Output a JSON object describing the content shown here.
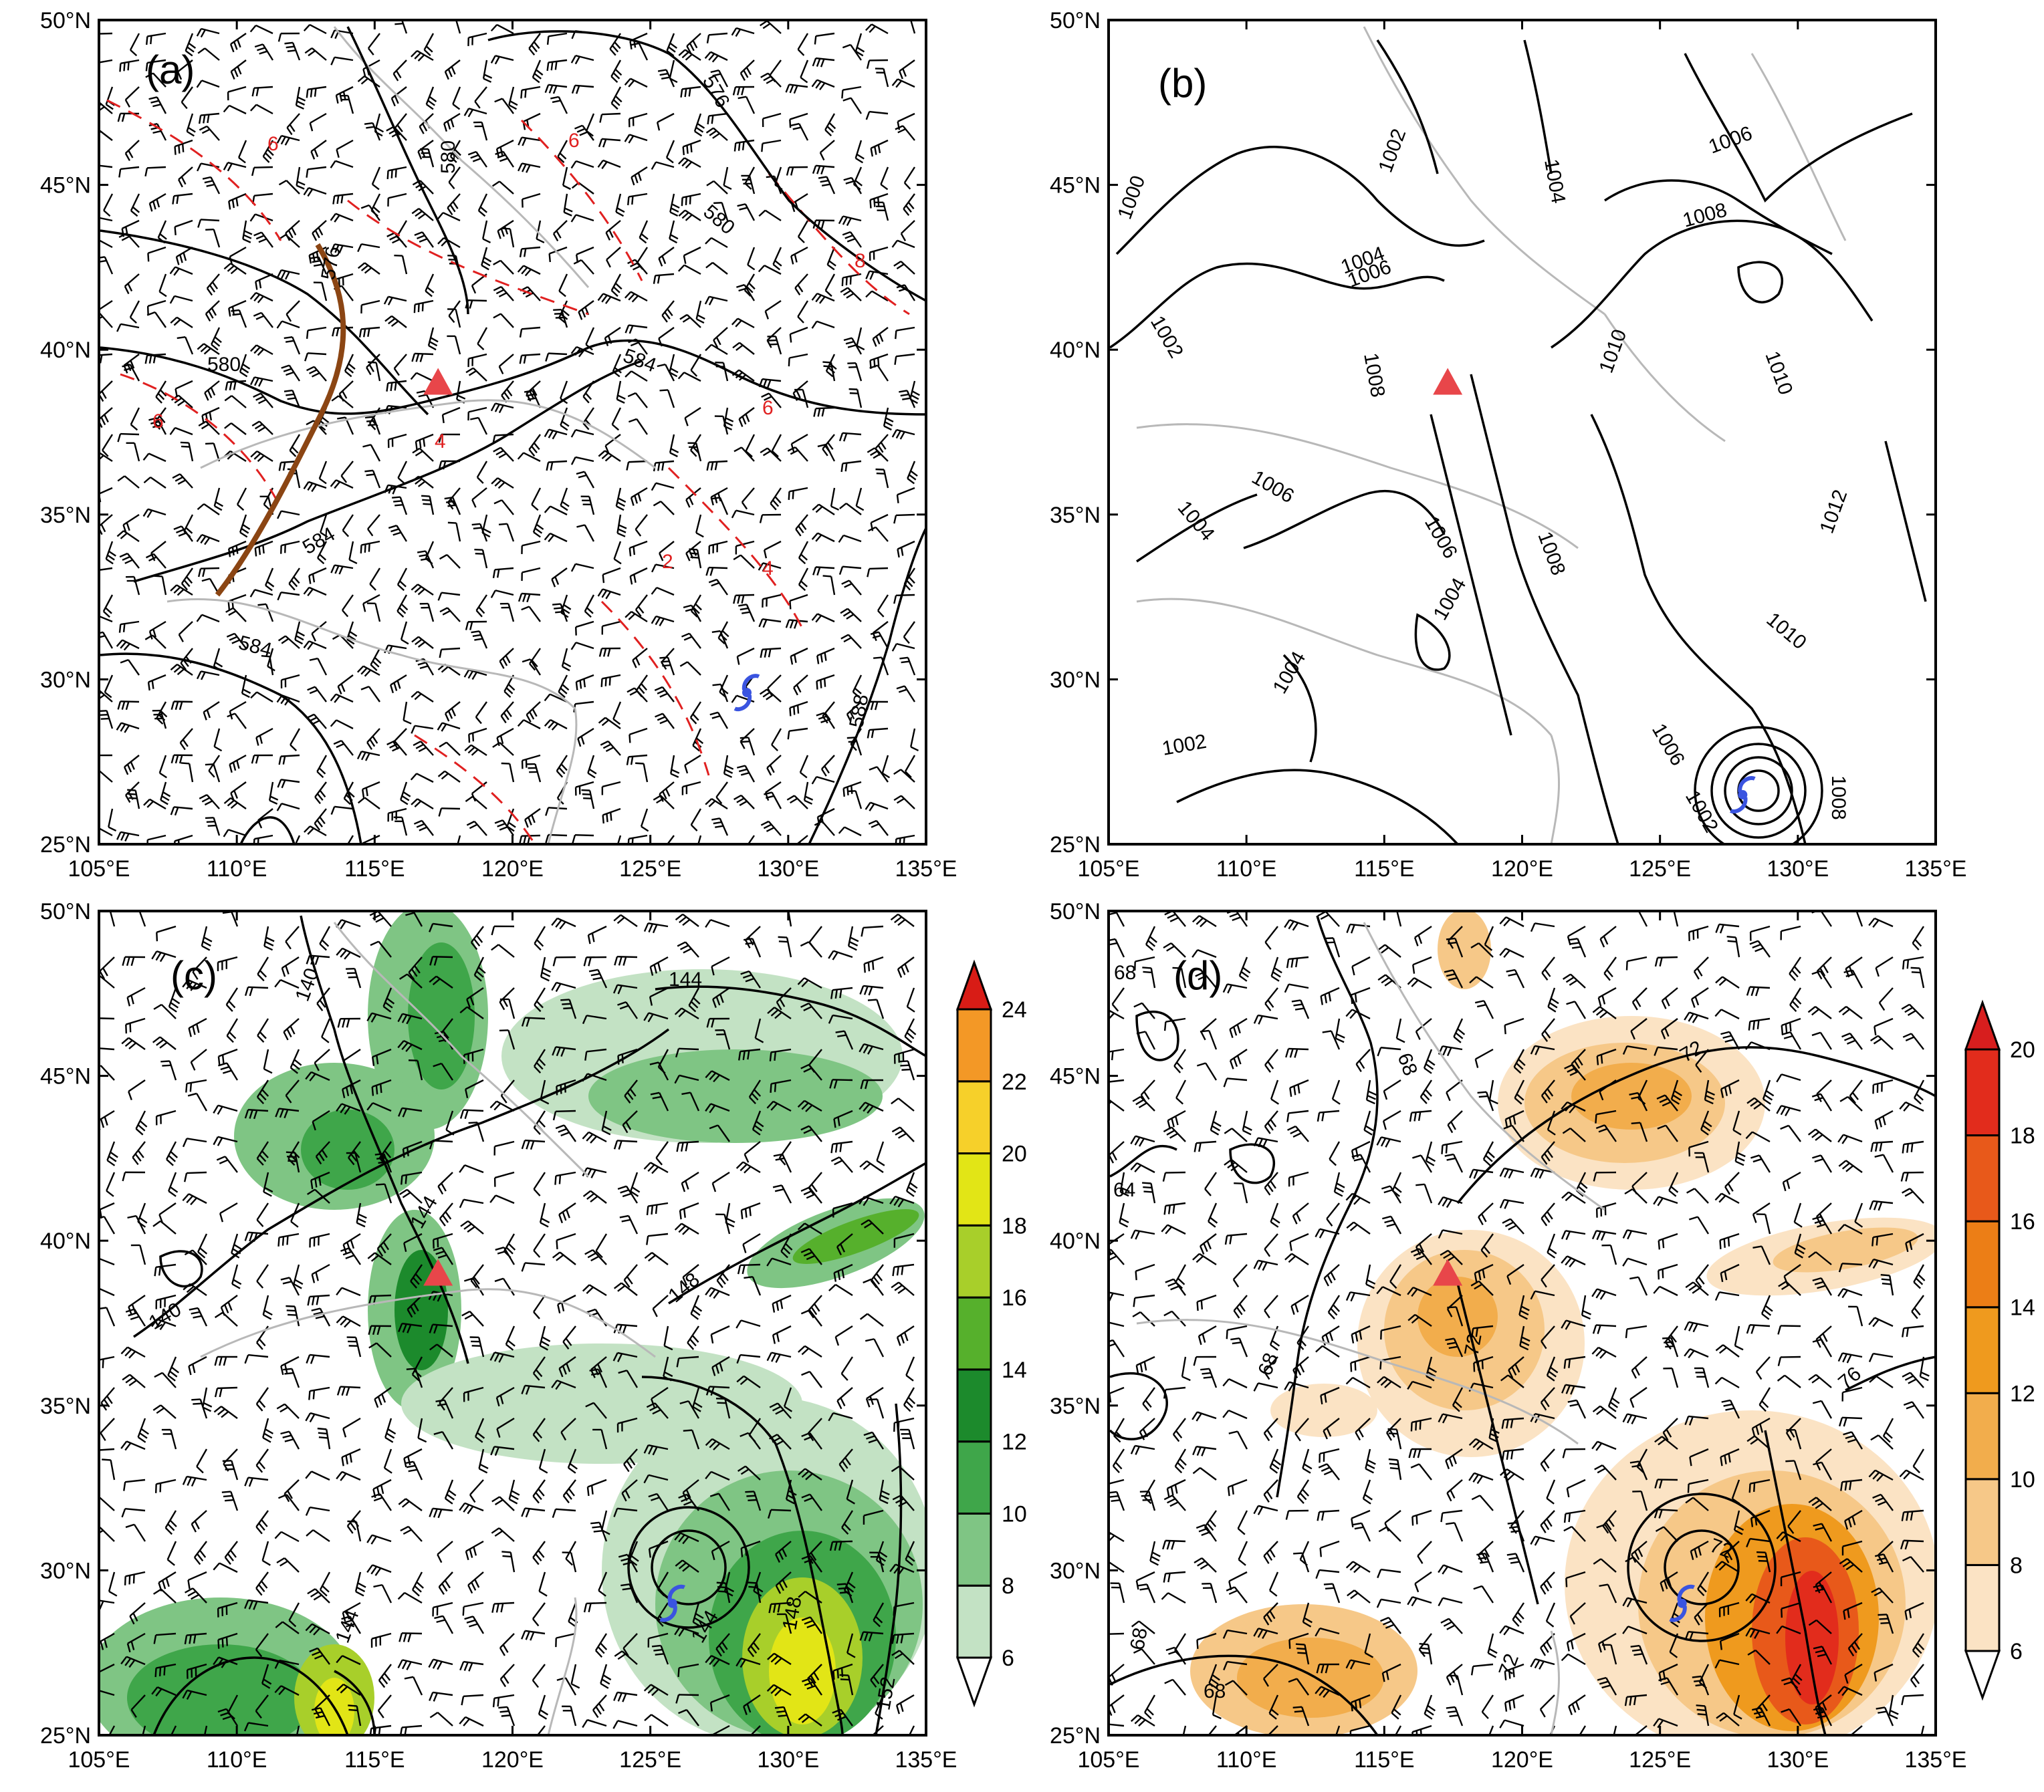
{
  "axes": {
    "lon_ticks": [
      "105°E",
      "110°E",
      "115°E",
      "120°E",
      "125°E",
      "130°E",
      "135°E"
    ],
    "lat_ticks": [
      "25°N",
      "30°N",
      "35°N",
      "40°N",
      "45°N",
      "50°N"
    ],
    "lon_range": [
      105,
      135
    ],
    "lat_range": [
      25,
      50
    ]
  },
  "panels": {
    "a": {
      "tag": "(a)",
      "contour_labels": [
        "576",
        "580",
        "576",
        "580",
        "580",
        "584",
        "584",
        "584",
        "588",
        "6",
        "6",
        "6",
        "4",
        "4",
        "2",
        "6",
        "8"
      ],
      "overlays": [
        "wind-barbs",
        "red-dashed-contours",
        "trough-line",
        "station-marker",
        "typhoon-marker"
      ]
    },
    "b": {
      "tag": "(b)",
      "contour_labels": [
        "1000",
        "1002",
        "1002",
        "1004",
        "1004",
        "1004",
        "1006",
        "1006",
        "1006",
        "1006",
        "1008",
        "1008",
        "1008",
        "1010",
        "1010",
        "1010",
        "1012",
        "1002",
        "1004",
        "1006",
        "1008",
        "1004",
        "1002"
      ],
      "overlays": [
        "station-marker",
        "typhoon-marker"
      ]
    },
    "c": {
      "tag": "(c)",
      "contour_labels": [
        "140",
        "144",
        "140",
        "144",
        "148",
        "144",
        "148",
        "152",
        "144"
      ],
      "colorbar": {
        "levels": [
          "6",
          "8",
          "10",
          "12",
          "14",
          "16",
          "18",
          "20",
          "22",
          "24"
        ],
        "colors": [
          "#c3e2c4",
          "#7fc584",
          "#3fa64a",
          "#1c8a2c",
          "#56b02c",
          "#a8cf2a",
          "#e2e516",
          "#f6d02a",
          "#f39826",
          "#e84c1e",
          "#d81c16"
        ]
      }
    },
    "d": {
      "tag": "(d)",
      "contour_labels": [
        "68",
        "64",
        "68",
        "72",
        "72",
        "76",
        "68",
        "72",
        "68",
        "72",
        "68"
      ],
      "colorbar": {
        "levels": [
          "6",
          "8",
          "10",
          "12",
          "14",
          "16",
          "18",
          "20"
        ],
        "colors": [
          "#fbe3c4",
          "#f6c888",
          "#f2ad4c",
          "#ef9a1e",
          "#ec7e16",
          "#e8591a",
          "#e22c1c",
          "#d71e1e"
        ]
      }
    }
  },
  "markers": {
    "station_color": "#e8464a",
    "typhoon_color": "#3a54e0",
    "trough_color": "#8b4513",
    "station": {
      "lon": 117.3,
      "lat": 39.0
    },
    "typhoon_a": {
      "lon": 128.5,
      "lat": 29.6
    },
    "typhoon_b": {
      "lon": 128.0,
      "lat": 26.5
    },
    "typhoon_c": {
      "lon": 125.8,
      "lat": 29.0
    },
    "typhoon_d": {
      "lon": 125.8,
      "lat": 29.0
    }
  }
}
